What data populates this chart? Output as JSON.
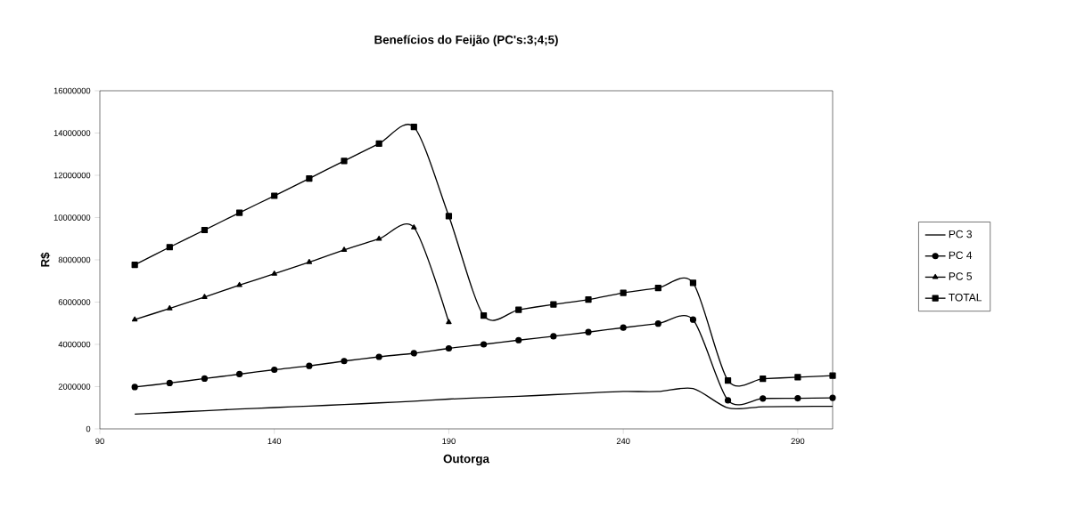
{
  "chart_data": {
    "type": "line",
    "title": "Benefícios do Feijão (PC's:3;4;5)",
    "xlabel": "Outorga",
    "ylabel": "R$",
    "x": [
      100,
      110,
      120,
      130,
      140,
      150,
      160,
      170,
      180,
      190,
      200,
      210,
      220,
      230,
      240,
      250,
      260,
      270,
      280,
      290,
      300
    ],
    "series": [
      {
        "name": "PC 3",
        "color": "#000000",
        "marker": "none",
        "values": [
          700000,
          780000,
          860000,
          940000,
          1010000,
          1080000,
          1150000,
          1230000,
          1310000,
          1410000,
          1480000,
          1540000,
          1620000,
          1700000,
          1770000,
          1770000,
          1910000,
          990000,
          1050000,
          1060000,
          1070000
        ]
      },
      {
        "name": "PC 4",
        "color": "#000000",
        "marker": "circle",
        "values": [
          1980000,
          2170000,
          2380000,
          2590000,
          2800000,
          2980000,
          3210000,
          3410000,
          3580000,
          3810000,
          4000000,
          4200000,
          4380000,
          4580000,
          4790000,
          4980000,
          5170000,
          1350000,
          1440000,
          1450000,
          1470000
        ]
      },
      {
        "name": "PC 5",
        "color": "#000000",
        "marker": "triangle",
        "values": [
          5170000,
          5700000,
          6240000,
          6800000,
          7340000,
          7890000,
          8470000,
          8990000,
          9530000,
          5050000,
          null,
          null,
          null,
          null,
          null,
          null,
          null,
          null,
          null,
          null,
          null
        ]
      },
      {
        "name": "TOTAL",
        "color": "#000000",
        "marker": "square",
        "values": [
          7760000,
          8600000,
          9410000,
          10230000,
          11030000,
          11850000,
          12680000,
          13500000,
          14290000,
          10070000,
          5360000,
          5640000,
          5890000,
          6120000,
          6440000,
          6670000,
          6910000,
          2290000,
          2370000,
          2450000,
          2520000
        ]
      }
    ],
    "xlim": [
      90,
      300
    ],
    "xticks": [
      90,
      140,
      190,
      240,
      290
    ],
    "ylim": [
      0,
      16000000
    ],
    "yticks": [
      0,
      2000000,
      4000000,
      6000000,
      8000000,
      10000000,
      12000000,
      14000000,
      16000000
    ],
    "grid": false,
    "legend": "right",
    "line_style": "solid"
  }
}
